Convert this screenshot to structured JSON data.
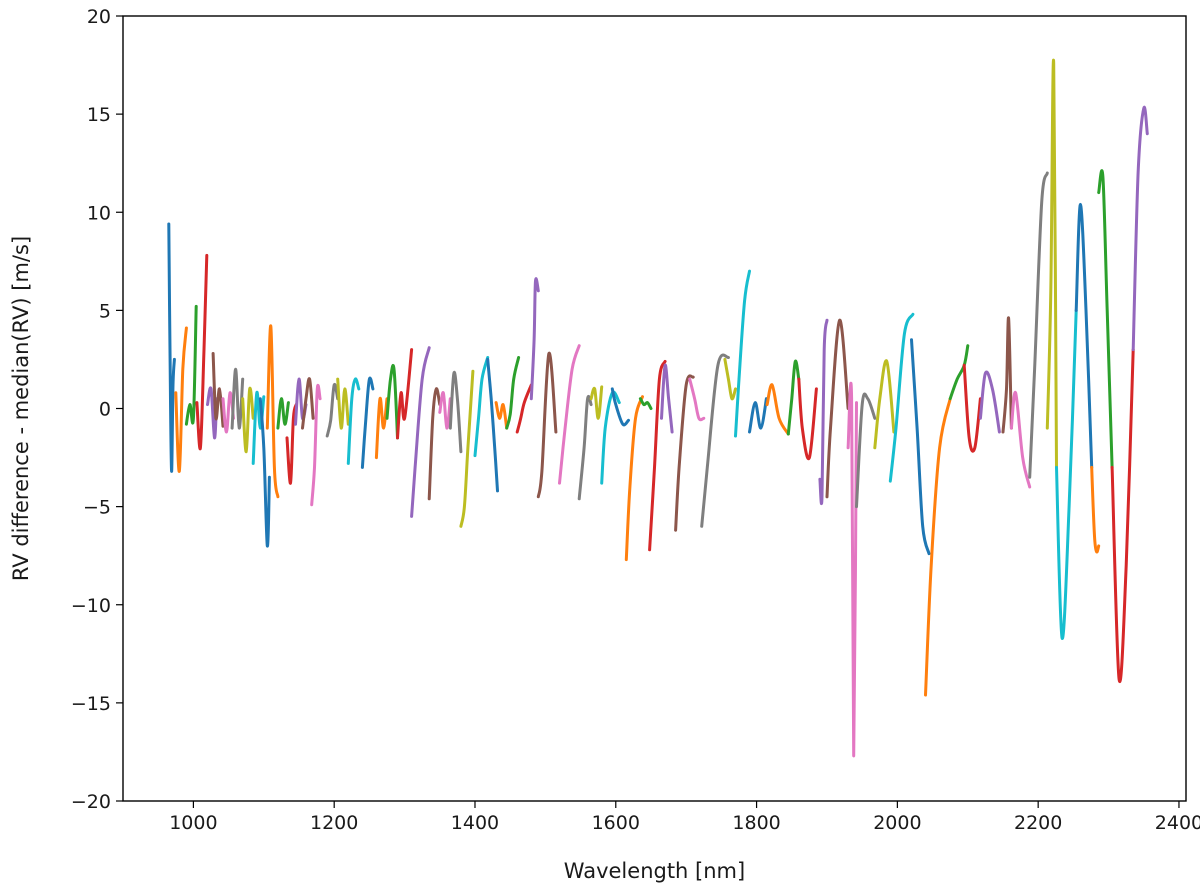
{
  "chart_data": {
    "type": "line",
    "xlabel": "Wavelength [nm]",
    "ylabel": "RV difference - median(RV) [m/s]",
    "xlim": [
      900,
      2410
    ],
    "ylim": [
      -20,
      20
    ],
    "xticks": [
      1000,
      1200,
      1400,
      1600,
      1800,
      2000,
      2200,
      2400
    ],
    "yticks": [
      -20,
      -15,
      -10,
      -5,
      0,
      5,
      10,
      15,
      20
    ],
    "xtick_labels": [
      "1000",
      "1200",
      "1400",
      "1600",
      "1800",
      "2000",
      "2200",
      "2400"
    ],
    "ytick_labels": [
      "−20",
      "−15",
      "−10",
      "−5",
      "0",
      "5",
      "10",
      "15",
      "20"
    ],
    "grid": false,
    "palette": [
      "#1f77b4",
      "#ff7f0e",
      "#2ca02c",
      "#d62728",
      "#9467bd",
      "#8c564b",
      "#e377c2",
      "#7f7f7f",
      "#bcbd22",
      "#17becf"
    ],
    "series": [
      {
        "x": [
          965,
          967,
          969,
          971,
          973
        ],
        "y": [
          9.4,
          2.0,
          -3.2,
          1.2,
          2.5
        ]
      },
      {
        "x": [
          975,
          980,
          985,
          990
        ],
        "y": [
          0.8,
          -3.2,
          2.0,
          4.1
        ]
      },
      {
        "x": [
          990,
          995,
          1000,
          1004
        ],
        "y": [
          -0.8,
          0.2,
          -0.5,
          5.2
        ]
      },
      {
        "x": [
          1005,
          1010,
          1015,
          1019
        ],
        "y": [
          0.3,
          -2.0,
          3.0,
          7.8
        ]
      },
      {
        "x": [
          1020,
          1025,
          1030,
          1033
        ],
        "y": [
          0.2,
          1.0,
          -1.5,
          0.5
        ]
      },
      {
        "x": [
          1028,
          1032,
          1037,
          1042
        ],
        "y": [
          2.8,
          -0.5,
          1.0,
          -0.9
        ]
      },
      {
        "x": [
          1042,
          1047,
          1052,
          1057
        ],
        "y": [
          0.5,
          -1.2,
          0.8,
          -0.5
        ]
      },
      {
        "x": [
          1055,
          1060,
          1065,
          1070
        ],
        "y": [
          -1.0,
          2.0,
          -1.0,
          1.5
        ]
      },
      {
        "x": [
          1070,
          1075,
          1080,
          1085
        ],
        "y": [
          0.5,
          -2.2,
          1.0,
          -0.5
        ]
      },
      {
        "x": [
          1085,
          1090,
          1095,
          1100
        ],
        "y": [
          -2.8,
          0.8,
          -1.0,
          0.6
        ]
      },
      {
        "x": [
          1095,
          1100,
          1105,
          1108
        ],
        "y": [
          0.5,
          -2.0,
          -7.0,
          -3.5
        ]
      },
      {
        "x": [
          1105,
          1110,
          1115,
          1120
        ],
        "y": [
          -1.0,
          4.2,
          -3.0,
          -4.5
        ]
      },
      {
        "x": [
          1120,
          1125,
          1130,
          1135
        ],
        "y": [
          -1.0,
          0.5,
          -0.8,
          0.3
        ]
      },
      {
        "x": [
          1133,
          1138,
          1142,
          1146
        ],
        "y": [
          -1.5,
          -3.8,
          -0.5,
          0.2
        ]
      },
      {
        "x": [
          1145,
          1150,
          1155,
          1160
        ],
        "y": [
          -0.8,
          1.5,
          -0.5,
          0.2
        ]
      },
      {
        "x": [
          1155,
          1160,
          1165,
          1170
        ],
        "y": [
          -1.0,
          0.5,
          1.5,
          -0.5
        ]
      },
      {
        "x": [
          1168,
          1172,
          1176,
          1180
        ],
        "y": [
          -4.9,
          -3.0,
          1.0,
          0.5
        ]
      },
      {
        "x": [
          1190,
          1195,
          1200,
          1205
        ],
        "y": [
          -1.4,
          -0.6,
          1.2,
          0.5
        ]
      },
      {
        "x": [
          1205,
          1210,
          1215,
          1220
        ],
        "y": [
          1.5,
          -1.0,
          1.0,
          -0.8
        ]
      },
      {
        "x": [
          1220,
          1225,
          1230,
          1235
        ],
        "y": [
          -2.8,
          0.5,
          1.5,
          1.0
        ]
      },
      {
        "x": [
          1240,
          1245,
          1250,
          1255
        ],
        "y": [
          -3.0,
          -0.5,
          1.5,
          1.0
        ]
      },
      {
        "x": [
          1260,
          1265,
          1270,
          1275
        ],
        "y": [
          -2.5,
          0.5,
          -1.0,
          0.5
        ]
      },
      {
        "x": [
          1275,
          1280,
          1285,
          1290
        ],
        "y": [
          -0.5,
          1.5,
          2.0,
          -1.5
        ]
      },
      {
        "x": [
          1290,
          1295,
          1300,
          1310
        ],
        "y": [
          -1.5,
          0.8,
          -0.5,
          3.0
        ]
      },
      {
        "x": [
          1310,
          1315,
          1325,
          1335
        ],
        "y": [
          -5.5,
          -3.0,
          1.5,
          3.1
        ]
      },
      {
        "x": [
          1335,
          1340,
          1345,
          1350
        ],
        "y": [
          -4.6,
          -0.5,
          1.0,
          0.2
        ]
      },
      {
        "x": [
          1350,
          1355,
          1360,
          1365
        ],
        "y": [
          -0.2,
          0.8,
          -1.0,
          0.5
        ]
      },
      {
        "x": [
          1365,
          1370,
          1375,
          1380
        ],
        "y": [
          -1.0,
          1.8,
          0.5,
          -2.2
        ]
      },
      {
        "x": [
          1380,
          1385,
          1390,
          1397
        ],
        "y": [
          -6.0,
          -5.0,
          -2.0,
          1.9
        ]
      },
      {
        "x": [
          1400,
          1405,
          1410,
          1418
        ],
        "y": [
          -2.4,
          -0.5,
          1.5,
          2.6
        ]
      },
      {
        "x": [
          1418,
          1423,
          1428,
          1432
        ],
        "y": [
          2.5,
          0.5,
          -2.0,
          -4.2
        ]
      },
      {
        "x": [
          1430,
          1435,
          1440,
          1445
        ],
        "y": [
          0.3,
          -0.5,
          0.2,
          -1.0
        ]
      },
      {
        "x": [
          1445,
          1450,
          1455,
          1462
        ],
        "y": [
          -1.0,
          -0.3,
          1.5,
          2.6
        ]
      },
      {
        "x": [
          1460,
          1465,
          1470,
          1480
        ],
        "y": [
          -1.2,
          -0.5,
          0.3,
          1.2
        ]
      },
      {
        "x": [
          1480,
          1484,
          1486,
          1490
        ],
        "y": [
          0.5,
          3.5,
          6.5,
          6.0
        ]
      },
      {
        "x": [
          1490,
          1495,
          1505,
          1515
        ],
        "y": [
          -4.5,
          -3.2,
          2.8,
          -1.2
        ]
      },
      {
        "x": [
          1520,
          1528,
          1538,
          1548
        ],
        "y": [
          -3.8,
          -1.0,
          2.0,
          3.2
        ]
      },
      {
        "x": [
          1548,
          1555,
          1560,
          1565
        ],
        "y": [
          -4.6,
          -2.0,
          0.5,
          0.2
        ]
      },
      {
        "x": [
          1565,
          1570,
          1575,
          1580
        ],
        "y": [
          0.5,
          1.0,
          -0.5,
          1.1
        ]
      },
      {
        "x": [
          1580,
          1585,
          1595,
          1605
        ],
        "y": [
          -3.8,
          -1.0,
          0.8,
          0.3
        ]
      },
      {
        "x": [
          1595,
          1600,
          1610,
          1618
        ],
        "y": [
          1.0,
          0.2,
          -0.8,
          -0.6
        ]
      },
      {
        "x": [
          1615,
          1620,
          1628,
          1638
        ],
        "y": [
          -7.7,
          -4.0,
          -0.5,
          0.6
        ]
      },
      {
        "x": [
          1635,
          1640,
          1645,
          1650
        ],
        "y": [
          0.5,
          0.2,
          0.3,
          0.0
        ]
      },
      {
        "x": [
          1648,
          1655,
          1662,
          1670
        ],
        "y": [
          -7.2,
          -3.0,
          1.5,
          2.4
        ]
      },
      {
        "x": [
          1665,
          1670,
          1675,
          1680
        ],
        "y": [
          -0.5,
          2.2,
          0.5,
          -1.2
        ]
      },
      {
        "x": [
          1685,
          1690,
          1700,
          1710
        ],
        "y": [
          -6.2,
          -3.0,
          1.2,
          1.6
        ]
      },
      {
        "x": [
          1705,
          1712,
          1718,
          1725
        ],
        "y": [
          1.5,
          0.5,
          -0.5,
          -0.5
        ]
      },
      {
        "x": [
          1722,
          1730,
          1745,
          1760
        ],
        "y": [
          -6.0,
          -3.0,
          2.2,
          2.6
        ]
      },
      {
        "x": [
          1755,
          1760,
          1765,
          1770
        ],
        "y": [
          2.5,
          1.5,
          0.5,
          1.0
        ]
      },
      {
        "x": [
          1770,
          1775,
          1783,
          1790
        ],
        "y": [
          -1.4,
          1.5,
          5.5,
          7.0
        ]
      },
      {
        "x": [
          1790,
          1798,
          1806,
          1814
        ],
        "y": [
          -1.2,
          0.3,
          -1.0,
          0.5
        ]
      },
      {
        "x": [
          1815,
          1822,
          1832,
          1845
        ],
        "y": [
          0.2,
          1.2,
          -0.5,
          -1.3
        ]
      },
      {
        "x": [
          1845,
          1850,
          1855,
          1860
        ],
        "y": [
          -1.3,
          0.5,
          2.4,
          1.5
        ]
      },
      {
        "x": [
          1860,
          1865,
          1875,
          1885
        ],
        "y": [
          1.5,
          -1.0,
          -2.5,
          1.0
        ]
      },
      {
        "x": [
          1890,
          1893,
          1896,
          1900
        ],
        "y": [
          -3.6,
          -4.5,
          3.0,
          4.5
        ]
      },
      {
        "x": [
          1900,
          1905,
          1918,
          1930
        ],
        "y": [
          -4.5,
          -1.0,
          4.5,
          0.0
        ]
      },
      {
        "x": [
          1930,
          1935,
          1938,
          1942
        ],
        "y": [
          -2.0,
          0.5,
          -17.7,
          0.3
        ]
      },
      {
        "x": [
          1942,
          1950,
          1958,
          1968
        ],
        "y": [
          -5.0,
          0.2,
          0.5,
          -0.5
        ]
      },
      {
        "x": [
          1968,
          1975,
          1985,
          1995
        ],
        "y": [
          -2.0,
          0.5,
          2.4,
          -1.2
        ]
      },
      {
        "x": [
          1990,
          1998,
          2010,
          2022
        ],
        "y": [
          -3.7,
          -1.0,
          3.8,
          4.8
        ]
      },
      {
        "x": [
          2020,
          2028,
          2036,
          2045
        ],
        "y": [
          3.5,
          -1.0,
          -6.0,
          -7.4
        ]
      },
      {
        "x": [
          2040,
          2048,
          2060,
          2075
        ],
        "y": [
          -14.6,
          -8.0,
          -2.0,
          0.5
        ]
      },
      {
        "x": [
          2075,
          2085,
          2095,
          2100
        ],
        "y": [
          0.5,
          1.5,
          2.2,
          3.2
        ]
      },
      {
        "x": [
          2095,
          2102,
          2110,
          2118
        ],
        "y": [
          2.2,
          -1.5,
          -2.0,
          0.5
        ]
      },
      {
        "x": [
          2118,
          2125,
          2135,
          2145
        ],
        "y": [
          -0.5,
          1.8,
          1.0,
          -1.2
        ]
      },
      {
        "x": [
          2150,
          2155,
          2158,
          2162
        ],
        "y": [
          -1.2,
          1.0,
          4.6,
          -1.0
        ]
      },
      {
        "x": [
          2162,
          2168,
          2178,
          2188
        ],
        "y": [
          -1.0,
          0.8,
          -2.5,
          -4.0
        ]
      },
      {
        "x": [
          2188,
          2195,
          2205,
          2213
        ],
        "y": [
          -3.5,
          2.0,
          10.5,
          12.0
        ]
      },
      {
        "x": [
          2213,
          2218,
          2222,
          2226
        ],
        "y": [
          -1.0,
          6.0,
          17.6,
          -3.0
        ]
      },
      {
        "x": [
          2226,
          2234,
          2244,
          2254
        ],
        "y": [
          -3.0,
          -11.7,
          -5.0,
          5.0
        ]
      },
      {
        "x": [
          2254,
          2260,
          2268,
          2276
        ],
        "y": [
          5.0,
          10.4,
          5.0,
          -3.0
        ]
      },
      {
        "x": [
          2276,
          2280,
          2283,
          2286
        ],
        "y": [
          -3.0,
          -6.5,
          -7.3,
          -7.0
        ]
      },
      {
        "x": [
          2286,
          2292,
          2298,
          2305
        ],
        "y": [
          11.0,
          11.8,
          5.0,
          -3.0
        ]
      },
      {
        "x": [
          2305,
          2315,
          2325,
          2335
        ],
        "y": [
          -3.0,
          -13.8,
          -8.0,
          3.0
        ]
      },
      {
        "x": [
          2335,
          2342,
          2350,
          2355
        ],
        "y": [
          3.0,
          12.0,
          15.3,
          14.0
        ]
      }
    ]
  }
}
